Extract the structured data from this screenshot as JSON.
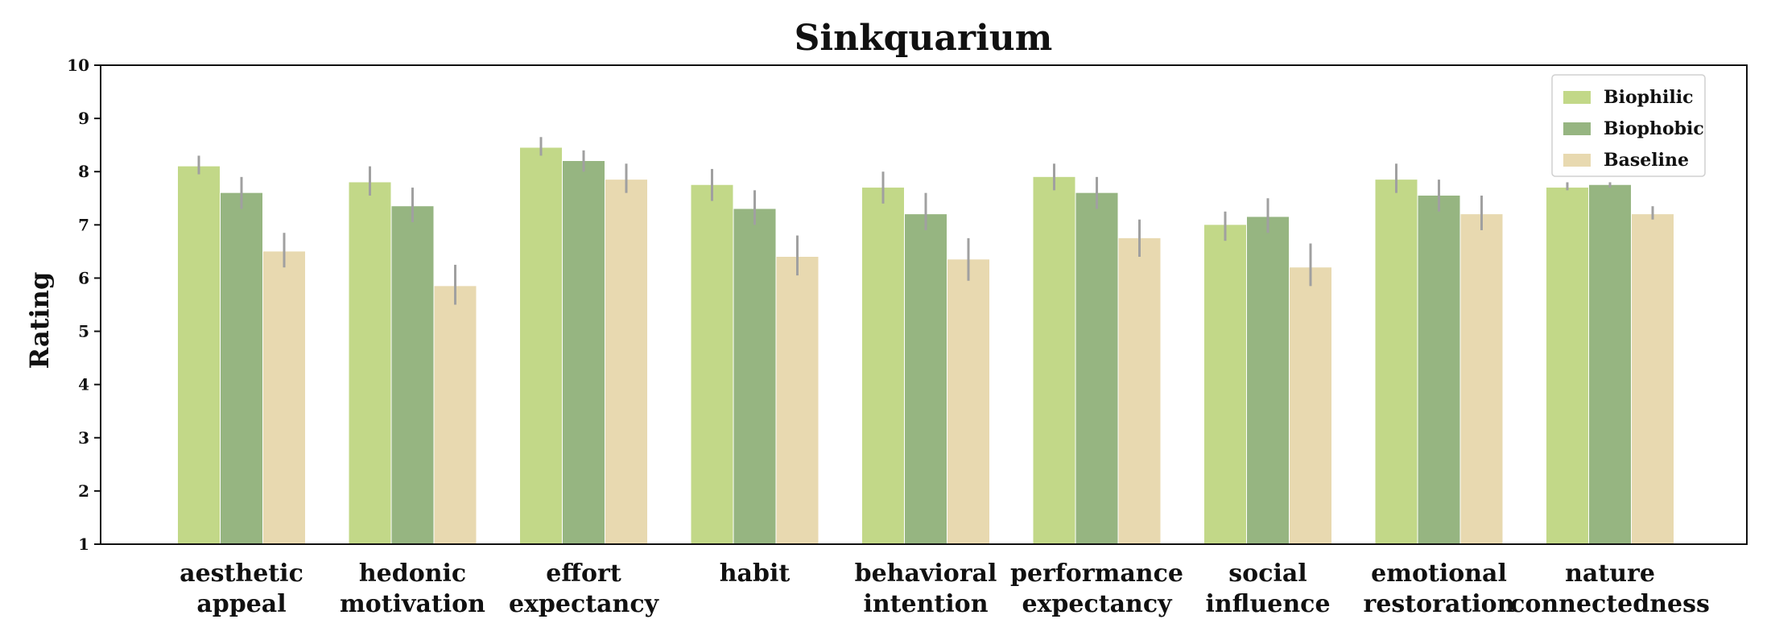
{
  "chart_data": {
    "type": "bar",
    "title": "Sinkquarium",
    "xlabel": "",
    "ylabel": "Rating",
    "ylim": [
      1,
      10
    ],
    "yticks": [
      1,
      2,
      3,
      4,
      5,
      6,
      7,
      8,
      9,
      10
    ],
    "grid": false,
    "legend_position": "top-right",
    "categories": [
      [
        "aesthetic",
        "appeal"
      ],
      [
        "hedonic",
        "motivation"
      ],
      [
        "effort",
        "expectancy"
      ],
      [
        "habit"
      ],
      [
        "behavioral",
        "intention"
      ],
      [
        "performance",
        "expectancy"
      ],
      [
        "social",
        "influence"
      ],
      [
        "emotional",
        "restoration"
      ],
      [
        "nature",
        "connectedness"
      ]
    ],
    "series": [
      {
        "name": "Biophilic",
        "color": "#c2d888",
        "values": [
          8.1,
          7.8,
          8.45,
          7.75,
          7.7,
          7.9,
          7.0,
          7.85,
          7.7
        ],
        "err_low": [
          7.95,
          7.55,
          8.3,
          7.45,
          7.4,
          7.65,
          6.7,
          7.6,
          7.65
        ],
        "err_high": [
          8.3,
          8.1,
          8.65,
          8.05,
          8.0,
          8.15,
          7.25,
          8.15,
          7.8
        ]
      },
      {
        "name": "Biophobic",
        "color": "#96b581",
        "values": [
          7.6,
          7.35,
          8.2,
          7.3,
          7.2,
          7.6,
          7.15,
          7.55,
          7.75
        ],
        "err_low": [
          7.3,
          7.05,
          8.0,
          7.0,
          6.9,
          7.3,
          6.85,
          7.25,
          7.7
        ],
        "err_high": [
          7.9,
          7.7,
          8.4,
          7.65,
          7.6,
          7.9,
          7.5,
          7.85,
          7.8
        ]
      },
      {
        "name": "Baseline",
        "color": "#e8d9b0",
        "values": [
          6.5,
          5.85,
          7.85,
          6.4,
          6.35,
          6.75,
          6.2,
          7.2,
          7.2
        ],
        "err_low": [
          6.2,
          5.5,
          7.6,
          6.05,
          5.95,
          6.4,
          5.85,
          6.9,
          7.1
        ],
        "err_high": [
          6.85,
          6.25,
          8.15,
          6.8,
          6.75,
          7.1,
          6.65,
          7.55,
          7.35
        ]
      }
    ],
    "error_bar_color": "#a0a0a0"
  }
}
